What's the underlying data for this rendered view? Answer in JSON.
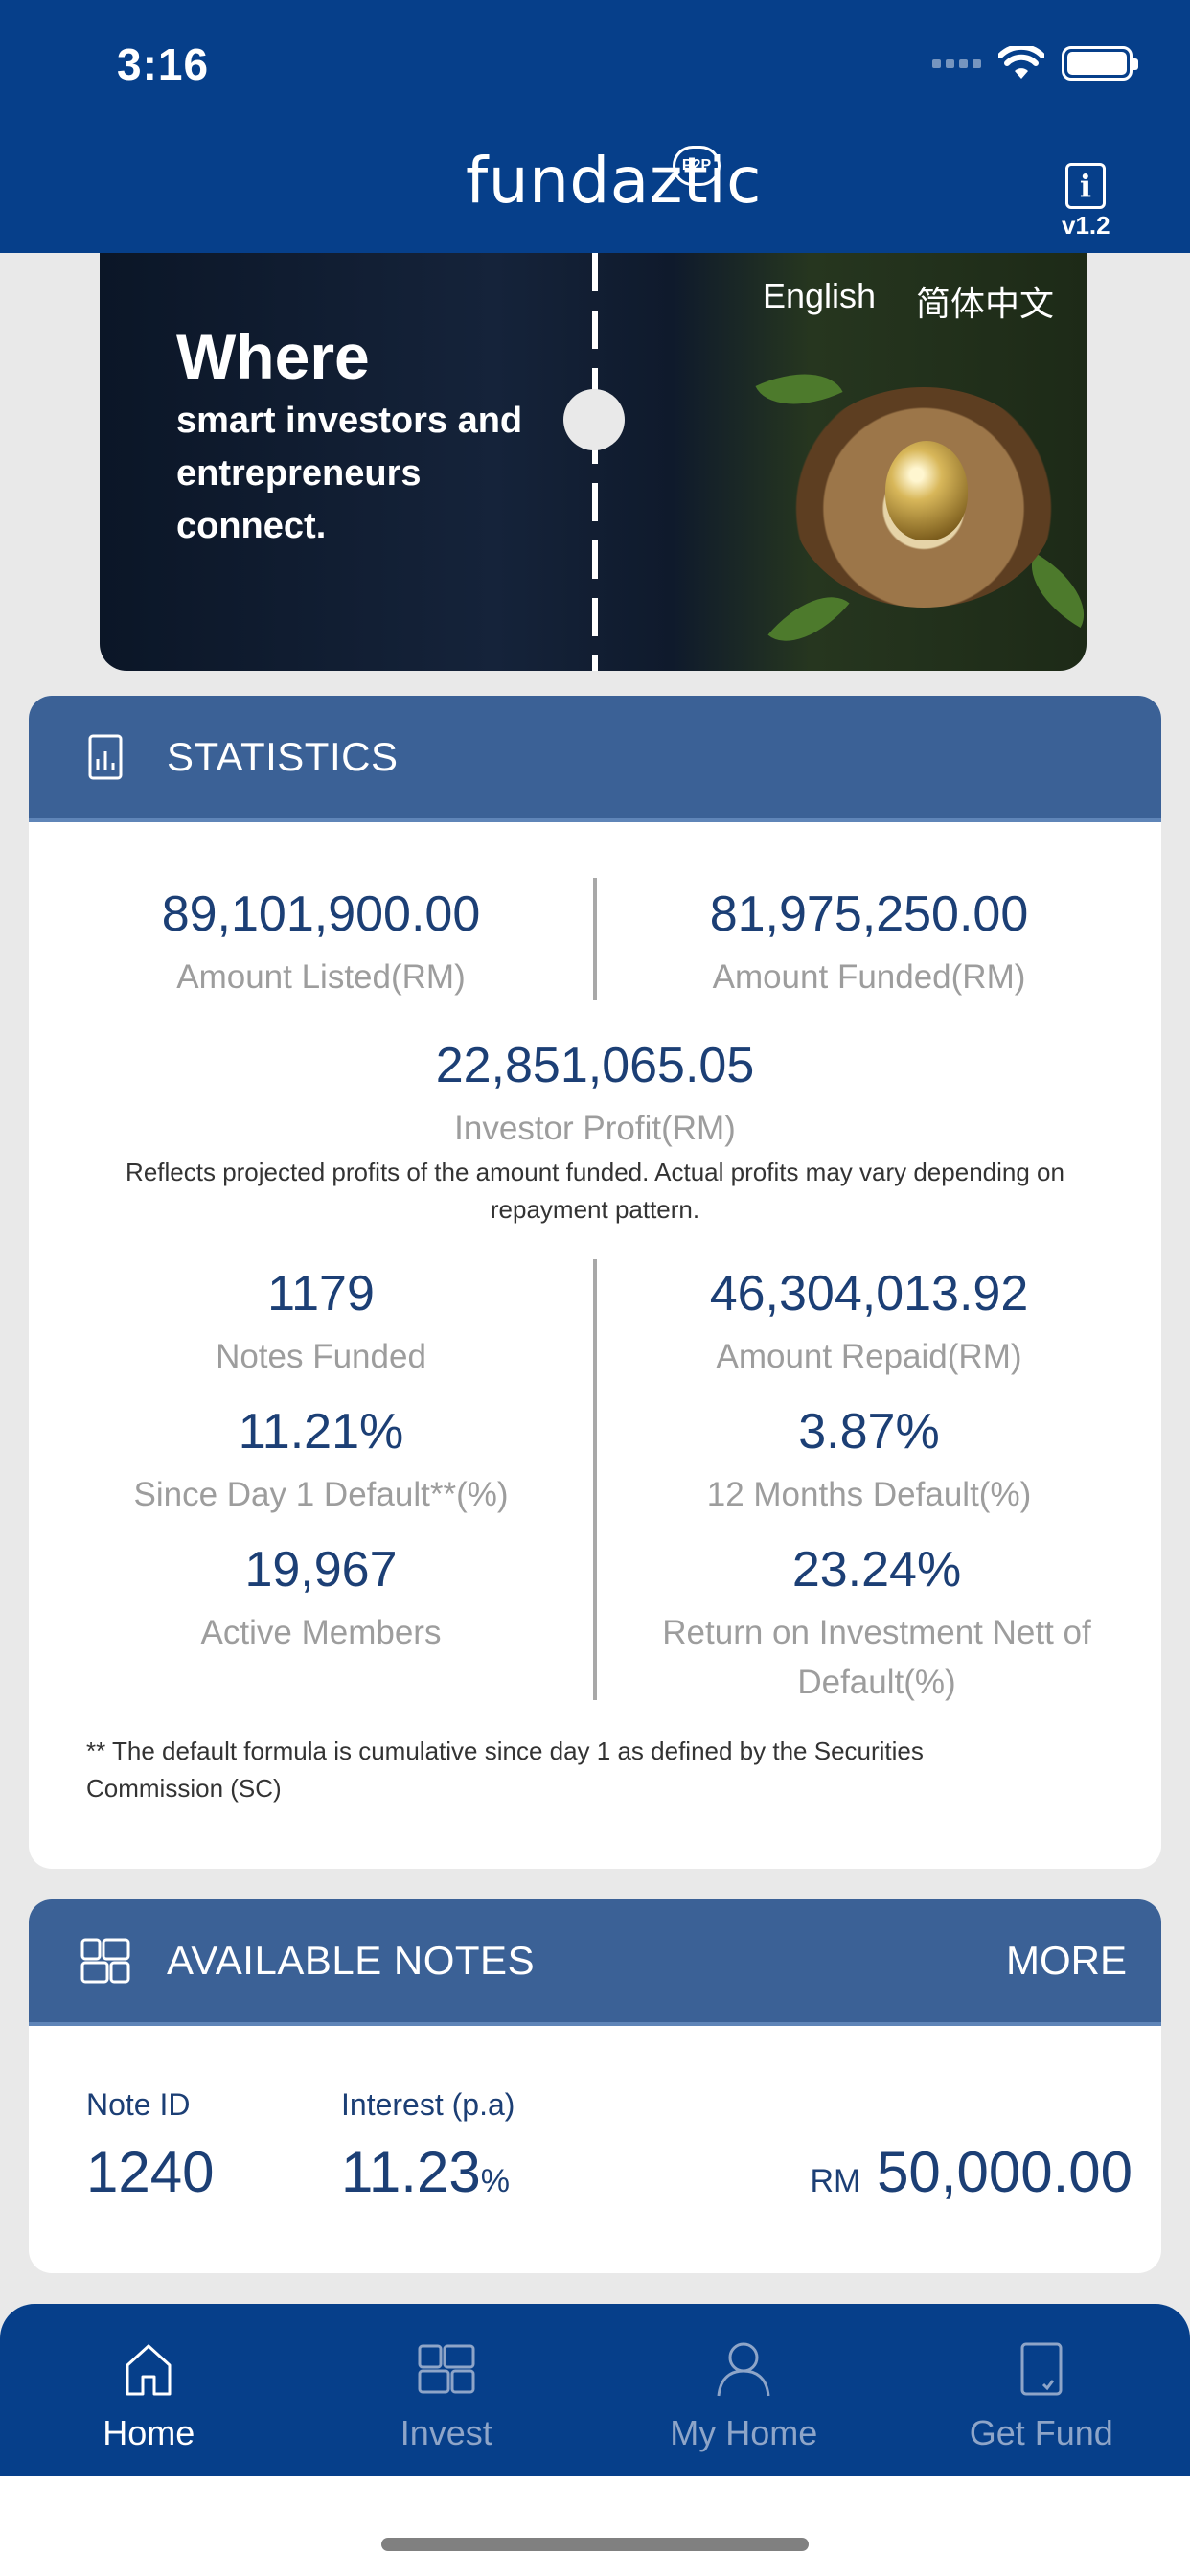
{
  "status_bar": {
    "time": "3:16"
  },
  "header": {
    "brand": "fundaztic",
    "badge": "P2P",
    "info_icon": "i",
    "version": "v1.2"
  },
  "banner": {
    "headline": "Where",
    "subline": "smart investors and entrepreneurs connect.",
    "lang_english": "English",
    "lang_chinese": "简体中文"
  },
  "statistics": {
    "title": "STATISTICS",
    "amount_listed": {
      "value": "89,101,900.00",
      "label": "Amount Listed(RM)"
    },
    "amount_funded": {
      "value": "81,975,250.00",
      "label": "Amount Funded(RM)"
    },
    "investor_profit": {
      "value": "22,851,065.05",
      "label": "Investor Profit(RM)"
    },
    "profit_disclaimer": "Reflects projected profits of the amount funded. Actual profits may vary depending on repayment pattern.",
    "notes_funded": {
      "value": "1179",
      "label": "Notes Funded"
    },
    "amount_repaid": {
      "value": "46,304,013.92",
      "label": "Amount Repaid(RM)"
    },
    "since_day1_default": {
      "value": "11.21%",
      "label": "Since Day 1 Default**(%)"
    },
    "twelve_month_default": {
      "value": "3.87%",
      "label": "12 Months Default(%)"
    },
    "active_members": {
      "value": "19,967",
      "label": "Active Members"
    },
    "roi_nett": {
      "value": "23.24%",
      "label": "Return on Investment Nett of Default(%)"
    },
    "footnote": "** The default formula is cumulative since day 1 as defined by the Securities Commission (SC)"
  },
  "available_notes": {
    "title": "AVAILABLE NOTES",
    "more": "MORE",
    "note_id_label": "Note ID",
    "note_id": "1240",
    "interest_label": "Interest (p.a)",
    "interest": "11.23",
    "interest_unit": "%",
    "currency": "RM",
    "amount": "50,000.00"
  },
  "tabbar": {
    "home": "Home",
    "invest": "Invest",
    "my_home": "My Home",
    "get_fund": "Get Fund"
  }
}
